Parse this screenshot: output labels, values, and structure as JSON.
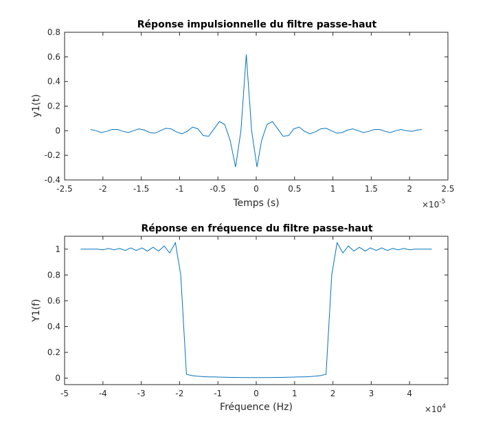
{
  "chart_data": [
    {
      "type": "line",
      "title": "Réponse impulsionnelle du filtre passe-haut",
      "xlabel": "Temps (s)",
      "ylabel": "y1(t)",
      "x_exponent_base": "×10",
      "x_exponent_power": "-5",
      "xlim": [
        -2.5,
        2.5
      ],
      "ylim": [
        -0.4,
        0.8
      ],
      "xticks": [
        -2.5,
        -2,
        -1.5,
        -1,
        -0.5,
        0,
        0.5,
        1,
        1.5,
        2,
        2.5
      ],
      "xtick_labels": [
        "-2.5",
        "-2",
        "-1.5",
        "-1",
        "-0.5",
        "0",
        "0.5",
        "1",
        "1.5",
        "2",
        "2.5"
      ],
      "yticks": [
        -0.4,
        -0.2,
        0,
        0.2,
        0.4,
        0.6,
        0.8
      ],
      "ytick_labels": [
        "-0.4",
        "-0.2",
        "0",
        "0.2",
        "0.4",
        "0.6",
        "0.8"
      ],
      "grid": false,
      "series": [
        {
          "color": "#0072bd",
          "x": [
            -2.16,
            -2.09,
            -2.02,
            -1.95,
            -1.88,
            -1.81,
            -1.74,
            -1.67,
            -1.6,
            -1.53,
            -1.46,
            -1.39,
            -1.32,
            -1.25,
            -1.18,
            -1.11,
            -1.04,
            -0.97,
            -0.9,
            -0.83,
            -0.76,
            -0.69,
            -0.62,
            -0.55,
            -0.48,
            -0.41,
            -0.34,
            -0.27,
            -0.2,
            -0.13,
            -0.06,
            0.01,
            0.07,
            0.14,
            0.21,
            0.28,
            0.35,
            0.42,
            0.49,
            0.56,
            0.63,
            0.7,
            0.77,
            0.84,
            0.91,
            0.98,
            1.05,
            1.12,
            1.19,
            1.26,
            1.33,
            1.4,
            1.47,
            1.54,
            1.61,
            1.68,
            1.75,
            1.82,
            1.89,
            1.96,
            2.03,
            2.1,
            2.16
          ],
          "y": [
            0.01,
            0.0,
            -0.015,
            -0.005,
            0.01,
            0.01,
            -0.005,
            -0.015,
            0.0,
            0.015,
            0.005,
            -0.015,
            -0.02,
            0.0,
            0.02,
            0.015,
            -0.01,
            -0.025,
            -0.005,
            0.03,
            0.015,
            -0.04,
            -0.045,
            0.015,
            0.075,
            0.05,
            -0.08,
            -0.295,
            0.0,
            0.62,
            0.0,
            -0.295,
            -0.08,
            0.05,
            0.075,
            0.015,
            -0.045,
            -0.04,
            0.015,
            0.03,
            -0.005,
            -0.025,
            -0.01,
            0.015,
            0.02,
            0.0,
            -0.02,
            -0.015,
            0.005,
            0.015,
            0.0,
            -0.015,
            -0.005,
            0.01,
            0.01,
            -0.005,
            -0.015,
            0.0,
            0.01,
            0.0,
            -0.005,
            0.005,
            0.01
          ]
        }
      ]
    },
    {
      "type": "line",
      "title": "Réponse en fréquence du filtre passe-haut",
      "xlabel": "Fréquence (Hz)",
      "ylabel": "Y1(f)",
      "x_exponent_base": "×10",
      "x_exponent_power": "4",
      "xlim": [
        -5,
        5
      ],
      "ylim": [
        -0.05,
        1.1
      ],
      "xticks": [
        -5,
        -4,
        -3,
        -2,
        -1,
        0,
        1,
        2,
        3,
        4
      ],
      "xtick_labels": [
        "-5",
        "-4",
        "-3",
        "-2",
        "-1",
        "0",
        "1",
        "2",
        "3",
        "4"
      ],
      "yticks": [
        0,
        0.2,
        0.4,
        0.6,
        0.8,
        1
      ],
      "ytick_labels": [
        "0",
        "0.2",
        "0.4",
        "0.6",
        "0.8",
        "1"
      ],
      "grid": false,
      "series": [
        {
          "color": "#0072bd",
          "x": [
            -4.58,
            -4.43,
            -4.29,
            -4.14,
            -4.0,
            -3.85,
            -3.71,
            -3.56,
            -3.42,
            -3.27,
            -3.13,
            -2.98,
            -2.84,
            -2.69,
            -2.55,
            -2.4,
            -2.26,
            -2.11,
            -1.97,
            -1.82,
            -1.68,
            -1.53,
            -1.39,
            -1.24,
            -1.1,
            -0.95,
            -0.81,
            -0.66,
            -0.52,
            -0.37,
            -0.23,
            -0.08,
            0.08,
            0.23,
            0.37,
            0.52,
            0.66,
            0.81,
            0.95,
            1.1,
            1.24,
            1.39,
            1.53,
            1.68,
            1.82,
            1.97,
            2.11,
            2.26,
            2.4,
            2.55,
            2.69,
            2.84,
            2.98,
            3.13,
            3.27,
            3.42,
            3.56,
            3.71,
            3.85,
            4.0,
            4.14,
            4.29,
            4.43,
            4.58
          ],
          "y": [
            1.0,
            1.0,
            1.0,
            1.0,
            0.995,
            1.005,
            0.995,
            1.005,
            0.99,
            1.01,
            0.99,
            1.01,
            0.985,
            1.015,
            0.985,
            1.025,
            0.97,
            1.05,
            0.8,
            0.03,
            0.02,
            0.015,
            0.012,
            0.01,
            0.01,
            0.008,
            0.007,
            0.006,
            0.006,
            0.005,
            0.005,
            0.005,
            0.005,
            0.005,
            0.005,
            0.006,
            0.006,
            0.007,
            0.008,
            0.01,
            0.01,
            0.012,
            0.015,
            0.02,
            0.03,
            0.8,
            1.05,
            0.97,
            1.025,
            0.985,
            1.015,
            0.985,
            1.01,
            0.99,
            1.01,
            0.99,
            1.005,
            0.995,
            1.005,
            0.995,
            1.0,
            1.0,
            1.0,
            1.0
          ]
        }
      ]
    }
  ]
}
